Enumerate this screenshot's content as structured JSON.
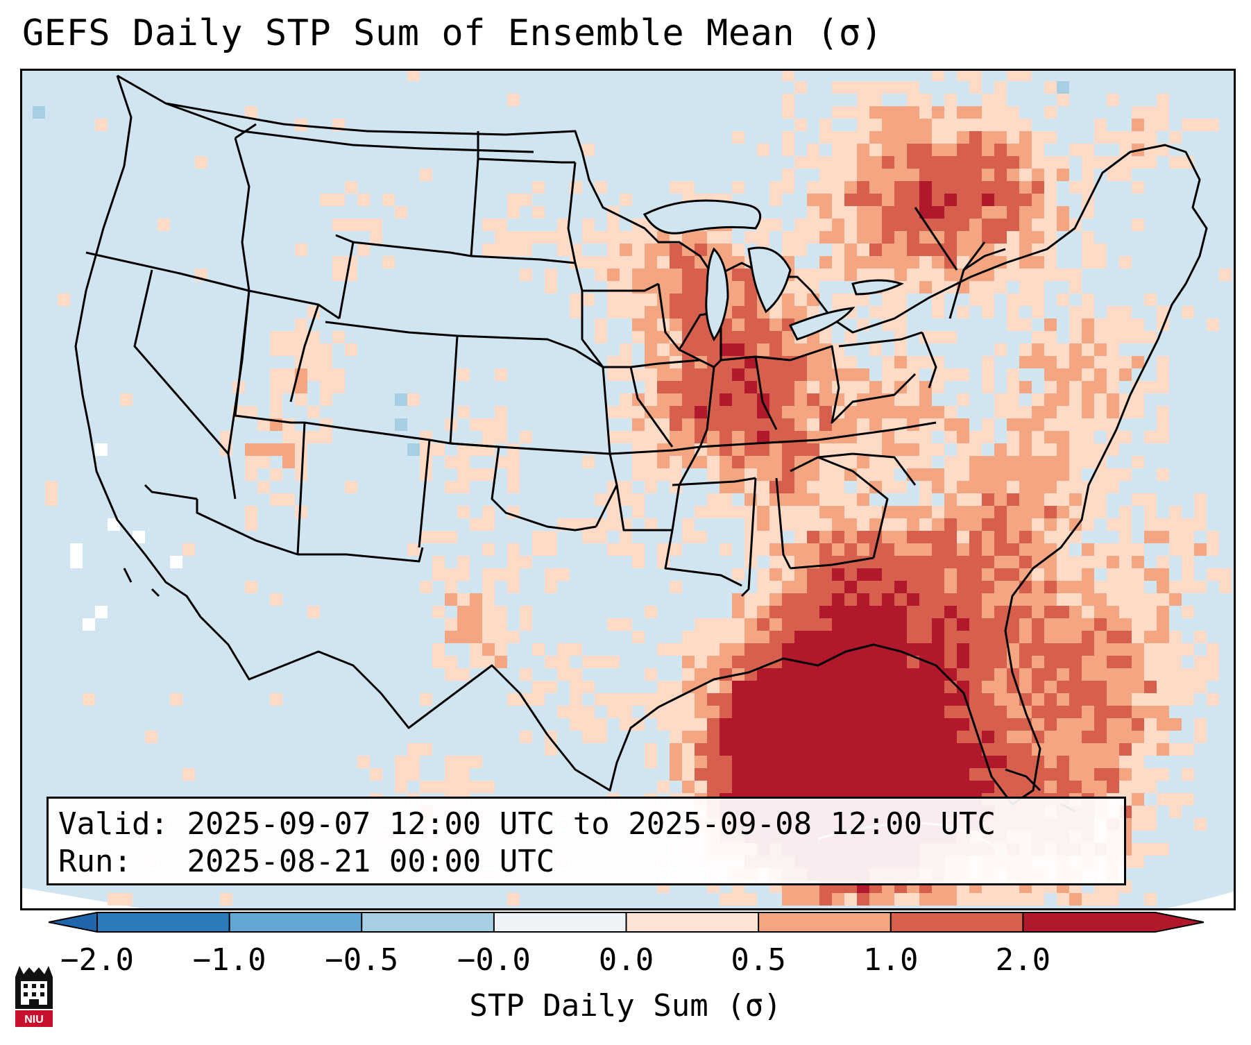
{
  "title": "GEFS Daily STP Sum of Ensemble Mean (σ)",
  "info": {
    "valid_label": "Valid:",
    "valid_value": "2025-09-07 12:00 UTC to 2025-09-08 12:00 UTC",
    "run_label": "Run:",
    "run_value": "2025-08-21 00:00 UTC"
  },
  "colorbar": {
    "label": "STP Daily Sum (σ)",
    "ticks": [
      "−2.0",
      "−1.0",
      "−0.5",
      "−0.0",
      "0.0",
      "0.5",
      "1.0",
      "2.0"
    ],
    "bin_colors": [
      "#2b7bba",
      "#62a8d3",
      "#a6cfe4",
      "#eef3f8",
      "#fbe3d6",
      "#f4a582",
      "#d6604d",
      "#b2182b"
    ],
    "extend_low_color": "#2166ac",
    "extend_high_color": "#b2182b"
  },
  "map": {
    "background_color": "#d1e5f0",
    "region": "Contiguous United States",
    "cell_categories": [
      "slightly negative",
      "near zero",
      "0.0 to 0.5",
      "0.5 to 1.0",
      "1.0 to 2.0"
    ]
  },
  "logo": {
    "text": "NIU"
  }
}
